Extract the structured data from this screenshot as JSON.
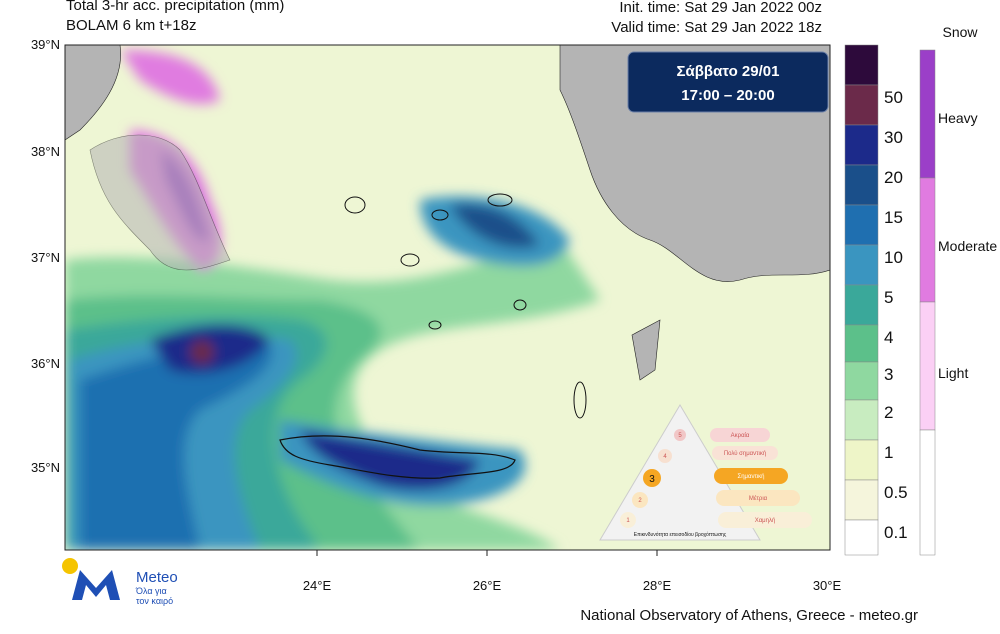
{
  "header": {
    "title": "Total 3-hr acc. precipitation (mm)",
    "model": "BOLAM 6 km t+18z",
    "init_time": "Init. time: Sat 29 Jan 2022 00z",
    "valid_time": "Valid time: Sat 29 Jan 2022 18z"
  },
  "date_box": {
    "day": "Σάββατο  29/01",
    "hours": "17:00 – 20:00"
  },
  "latitude_labels": [
    "39°N",
    "38°N",
    "37°N",
    "36°N",
    "35°N"
  ],
  "longitude_labels": [
    "24°E",
    "26°E",
    "28°E",
    "30°E"
  ],
  "precipitation_scale": [
    "50",
    "30",
    "20",
    "15",
    "10",
    "5",
    "4",
    "3",
    "2",
    "1",
    "0.5",
    "0.1"
  ],
  "snow_scale": {
    "title": "Snow",
    "levels": [
      "Heavy",
      "Moderate",
      "Light"
    ]
  },
  "risk_pyramid": {
    "levels": [
      "Ακραία",
      "Πολύ σημαντική",
      "Σημαντική",
      "Μέτρια",
      "Χαμηλή"
    ],
    "numbers": [
      "5",
      "4",
      "3",
      "2",
      "1"
    ],
    "caption": "Επικινδυνότητα επεισοδίου βροχόπτωσης"
  },
  "logo": {
    "name": "Meteo",
    "slogan_1": "Όλα για",
    "slogan_2": "τον καιρό"
  },
  "footer": "National Observatory of Athens, Greece - meteo.gr"
}
